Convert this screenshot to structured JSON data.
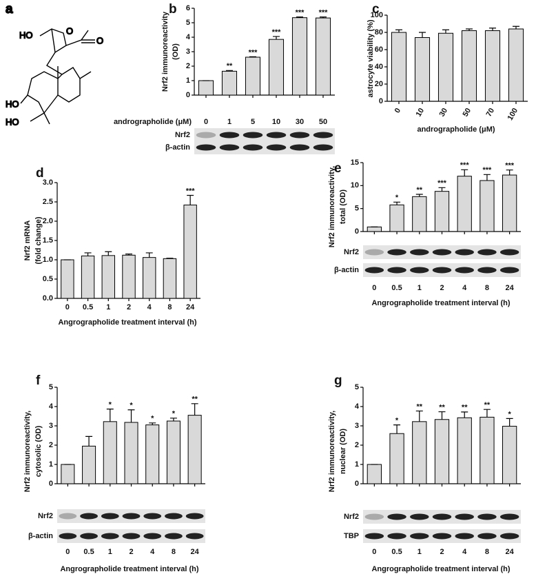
{
  "structure": {
    "panel_label": "a",
    "atoms": [
      "HO",
      "O",
      "O",
      "HO",
      "HO"
    ]
  },
  "chart_data": [
    {
      "type": "bar",
      "panel_label": "b",
      "ylabel": [
        "Nrf2 immunoreactivity",
        "(OD)"
      ],
      "xlabel": "andrographolide (μM)",
      "xlabel_position": "left",
      "categories": [
        "0",
        "1",
        "5",
        "10",
        "30",
        "50"
      ],
      "values": [
        1,
        1.65,
        2.62,
        3.85,
        5.35,
        5.33
      ],
      "errors": [
        0,
        0.05,
        0.03,
        0.2,
        0.05,
        0.07
      ],
      "annotations": [
        null,
        "**",
        "***",
        "***",
        "***",
        "***"
      ],
      "ylim": [
        0,
        6
      ],
      "yticks": [
        0,
        1,
        2,
        3,
        4,
        5,
        6
      ],
      "color": "#d9d9d9",
      "blots": [
        "Nrf2",
        "β-actin"
      ]
    },
    {
      "type": "bar",
      "panel_label": "c",
      "ylabel": [
        "astrocyte viability (%)"
      ],
      "xlabel": "andrographolide (μM)",
      "rotate_categories": true,
      "categories": [
        "0",
        "10",
        "30",
        "50",
        "70",
        "100"
      ],
      "values": [
        80,
        74,
        79,
        82,
        82,
        84
      ],
      "errors": [
        3,
        6,
        4,
        2,
        3,
        3
      ],
      "annotations": [
        null,
        null,
        null,
        null,
        null,
        null
      ],
      "ylim": [
        0,
        100
      ],
      "yticks": [
        0,
        20,
        40,
        60,
        80,
        100
      ],
      "color": "#d9d9d9",
      "blots": []
    },
    {
      "type": "bar",
      "panel_label": "d",
      "ylabel": [
        "Nrf2 mRNA",
        "(fold  change)"
      ],
      "xlabel": "Angrographolide treatment interval (h)",
      "categories": [
        "0",
        "0.5",
        "1",
        "2",
        "4",
        "8",
        "24"
      ],
      "values": [
        1.0,
        1.1,
        1.11,
        1.12,
        1.06,
        1.03,
        2.42
      ],
      "errors": [
        0,
        0.08,
        0.1,
        0.03,
        0.12,
        0.01,
        0.25
      ],
      "annotations": [
        null,
        null,
        null,
        null,
        null,
        null,
        "***"
      ],
      "ylim": [
        0,
        3
      ],
      "yticks": [
        {
          "value": 0,
          "label": "0.0"
        },
        0.5,
        {
          "value": 1,
          "label": "1.0"
        },
        1.5,
        {
          "value": 2,
          "label": "2.0"
        },
        2.5,
        {
          "value": 3,
          "label": "3.0"
        }
      ],
      "color": "#d9d9d9",
      "blots": []
    },
    {
      "type": "bar",
      "panel_label": "e",
      "ylabel": [
        "Nrf2 immunoreactivity,",
        "total (OD)"
      ],
      "xlabel": "Angrographolide treatment interval (h)",
      "categories": [
        "0",
        "0.5",
        "1",
        "2",
        "4",
        "8",
        "24"
      ],
      "values": [
        1,
        5.8,
        7.6,
        8.75,
        12.05,
        11.1,
        12.3
      ],
      "errors": [
        0,
        0.6,
        0.5,
        0.8,
        1.4,
        1.3,
        1.1
      ],
      "annotations": [
        null,
        "*",
        "**",
        "***",
        "***",
        "***",
        "***"
      ],
      "ylim": [
        0,
        15
      ],
      "yticks": [
        0,
        5,
        10,
        15
      ],
      "color": "#d9d9d9",
      "blots": [
        "Nrf2",
        "β-actin"
      ]
    },
    {
      "type": "bar",
      "panel_label": "f",
      "ylabel": [
        "Nrf2 immunoreactivity,",
        "cytosolic (OD)"
      ],
      "xlabel": "Angrographolide treatment interval (h)",
      "categories": [
        "0",
        "0.5",
        "1",
        "2",
        "4",
        "8",
        "24"
      ],
      "values": [
        1,
        1.95,
        3.22,
        3.18,
        3.05,
        3.25,
        3.55
      ],
      "errors": [
        0,
        0.5,
        0.65,
        0.65,
        0.1,
        0.15,
        0.6
      ],
      "annotations": [
        null,
        null,
        "*",
        "*",
        "*",
        "*",
        "**"
      ],
      "ylim": [
        0,
        5
      ],
      "yticks": [
        0,
        1,
        2,
        3,
        4,
        5
      ],
      "color": "#d9d9d9",
      "blots": [
        "Nrf2",
        "β-actin"
      ]
    },
    {
      "type": "bar",
      "panel_label": "g",
      "ylabel": [
        "Nrf2 immunoreactivity,",
        "nuclear (OD)"
      ],
      "xlabel": "Angrographolide treatment interval (h)",
      "categories": [
        "0",
        "0.5",
        "1",
        "2",
        "4",
        "8",
        "24"
      ],
      "values": [
        1,
        2.6,
        3.22,
        3.33,
        3.42,
        3.45,
        2.98
      ],
      "errors": [
        0,
        0.45,
        0.55,
        0.4,
        0.3,
        0.4,
        0.4
      ],
      "annotations": [
        null,
        "*",
        "**",
        "**",
        "**",
        "**",
        "*"
      ],
      "ylim": [
        0,
        5
      ],
      "yticks": [
        0,
        1,
        2,
        3,
        4,
        5
      ],
      "color": "#d9d9d9",
      "blots": [
        "Nrf2",
        "TBP"
      ]
    }
  ]
}
